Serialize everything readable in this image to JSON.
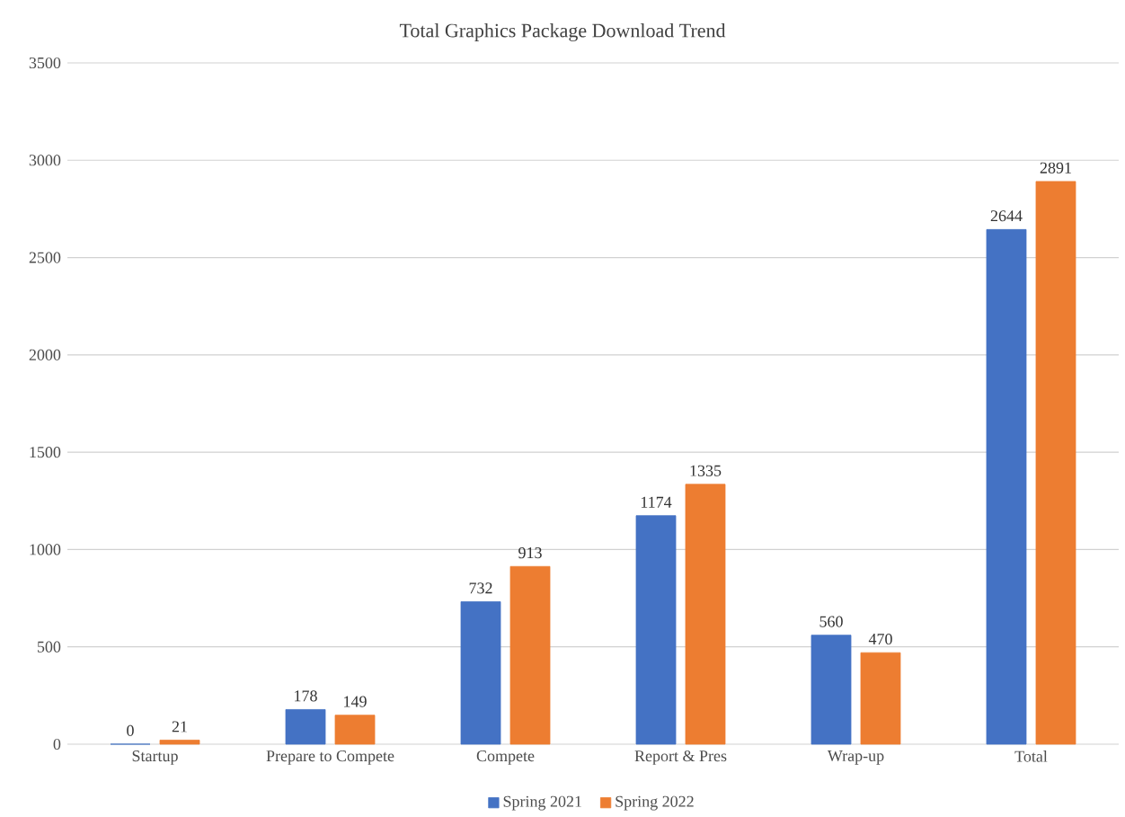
{
  "chart_data": {
    "type": "bar",
    "title": "Total Graphics Package Download Trend",
    "categories": [
      "Startup",
      "Prepare to Compete",
      "Compete",
      "Report & Pres",
      "Wrap-up",
      "Total"
    ],
    "series": [
      {
        "name": "Spring 2021",
        "color": "#4472c4",
        "values": [
          0,
          178,
          732,
          1174,
          560,
          2644
        ]
      },
      {
        "name": "Spring 2022",
        "color": "#ed7d31",
        "values": [
          21,
          149,
          913,
          1335,
          470,
          2891
        ]
      }
    ],
    "ylim": [
      0,
      3500
    ],
    "yticks": [
      0,
      500,
      1000,
      1500,
      2000,
      2500,
      3000,
      3500
    ],
    "grid": "y",
    "legend": "bottom",
    "data_labels": true
  }
}
